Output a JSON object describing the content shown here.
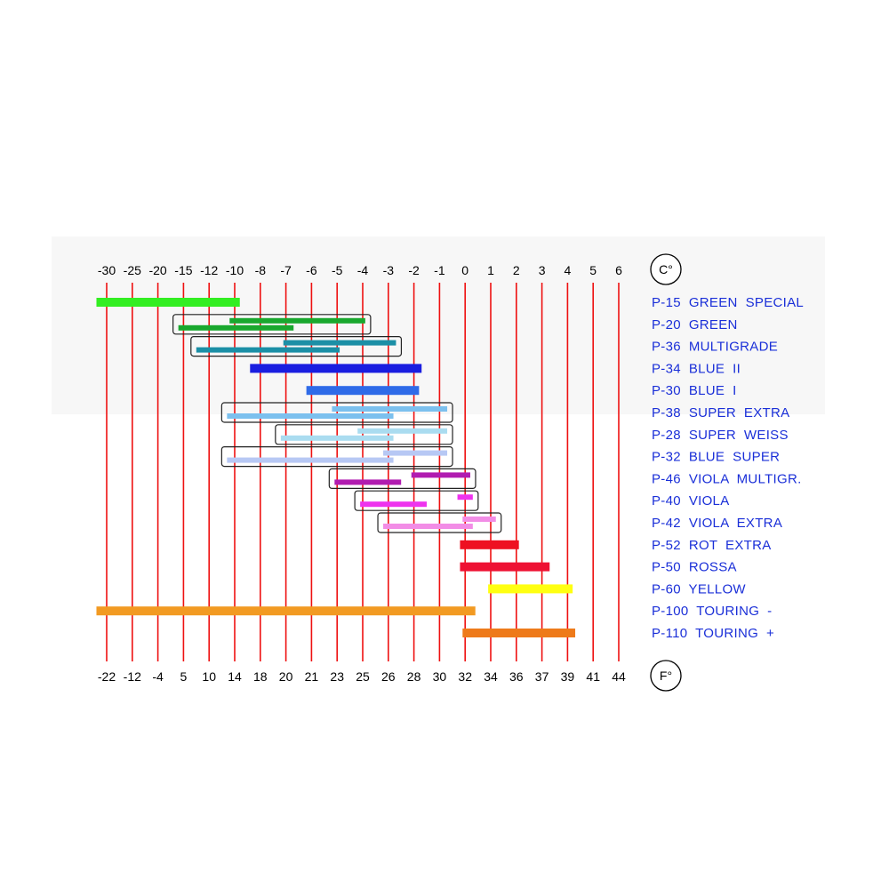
{
  "chart_data": {
    "type": "bar",
    "top_axis": {
      "unit": "C°",
      "ticks": [
        "-30",
        "-25",
        "-20",
        "-15",
        "-12",
        "-10",
        "-8",
        "-7",
        "-6",
        "-5",
        "-4",
        "-3",
        "-2",
        "-1",
        "0",
        "1",
        "2",
        "3",
        "4",
        "5",
        "6"
      ]
    },
    "bottom_axis": {
      "unit": "F°",
      "ticks": [
        "-22",
        "-12",
        "-4",
        "5",
        "10",
        "14",
        "18",
        "20",
        "21",
        "23",
        "25",
        "26",
        "28",
        "30",
        "32",
        "34",
        "36",
        "37",
        "39",
        "41",
        "44"
      ]
    },
    "grid": true,
    "legend": "right",
    "rows": [
      {
        "label": "P-15  GREEN  SPECIAL",
        "boxed": false,
        "segments": [
          {
            "from": -0.4,
            "to": 5.2,
            "color": "#33ee22"
          }
        ]
      },
      {
        "label": "P-20  GREEN",
        "boxed": true,
        "segments": [
          {
            "from": 4.8,
            "to": 10.1,
            "color": "#19a82e"
          },
          {
            "from": 2.8,
            "to": 7.3,
            "color": "#19a82e"
          }
        ]
      },
      {
        "label": "P-36  MULTIGRADE",
        "boxed": true,
        "segments": [
          {
            "from": 6.9,
            "to": 11.3,
            "color": "#1b8fa6"
          },
          {
            "from": 3.5,
            "to": 9.1,
            "color": "#1b8fa6"
          }
        ]
      },
      {
        "label": "P-34  BLUE  II",
        "boxed": false,
        "segments": [
          {
            "from": 5.6,
            "to": 12.3,
            "color": "#1a1ee0"
          }
        ]
      },
      {
        "label": "P-30  BLUE  I",
        "boxed": false,
        "segments": [
          {
            "from": 7.8,
            "to": 12.2,
            "color": "#2f6be8"
          }
        ]
      },
      {
        "label": "P-38  SUPER  EXTRA",
        "boxed": true,
        "segments": [
          {
            "from": 8.8,
            "to": 13.3,
            "color": "#7cc0ee"
          },
          {
            "from": 4.7,
            "to": 11.2,
            "color": "#7cc0ee"
          }
        ]
      },
      {
        "label": "P-28  SUPER  WEISS",
        "boxed": true,
        "segments": [
          {
            "from": 9.8,
            "to": 13.3,
            "color": "#aadcf0"
          },
          {
            "from": 6.8,
            "to": 11.2,
            "color": "#aadcf0"
          }
        ]
      },
      {
        "label": "P-32  BLUE  SUPER",
        "boxed": true,
        "segments": [
          {
            "from": 10.8,
            "to": 13.3,
            "color": "#b7c8f4"
          },
          {
            "from": 4.7,
            "to": 11.2,
            "color": "#b7c8f4"
          }
        ]
      },
      {
        "label": "P-46  VIOLA  MULTIGR.",
        "boxed": true,
        "segments": [
          {
            "from": 11.9,
            "to": 14.2,
            "color": "#b11bb0"
          },
          {
            "from": 8.9,
            "to": 11.5,
            "color": "#b11bb0"
          }
        ]
      },
      {
        "label": "P-40  VIOLA",
        "boxed": true,
        "segments": [
          {
            "from": 13.7,
            "to": 14.3,
            "color": "#ee33ee"
          },
          {
            "from": 9.9,
            "to": 12.5,
            "color": "#ee33ee"
          }
        ]
      },
      {
        "label": "P-42  VIOLA  EXTRA",
        "boxed": true,
        "segments": [
          {
            "from": 13.9,
            "to": 15.2,
            "color": "#f28de6"
          },
          {
            "from": 10.8,
            "to": 14.3,
            "color": "#f28de6"
          }
        ]
      },
      {
        "label": "P-52  ROT  EXTRA",
        "boxed": false,
        "segments": [
          {
            "from": 13.8,
            "to": 16.1,
            "color": "#ee1122"
          }
        ]
      },
      {
        "label": "P-50  ROSSA",
        "boxed": false,
        "segments": [
          {
            "from": 13.8,
            "to": 17.3,
            "color": "#ee1133"
          }
        ]
      },
      {
        "label": "P-60  YELLOW",
        "boxed": false,
        "segments": [
          {
            "from": 14.9,
            "to": 18.2,
            "color": "#ffff11"
          }
        ]
      },
      {
        "label": "P-100  TOURING  -",
        "boxed": false,
        "segments": [
          {
            "from": -0.4,
            "to": 14.4,
            "color": "#f29a22"
          }
        ]
      },
      {
        "label": "P-110  TOURING  +",
        "boxed": false,
        "segments": [
          {
            "from": 13.9,
            "to": 18.3,
            "color": "#ee7a1a"
          }
        ]
      }
    ]
  }
}
